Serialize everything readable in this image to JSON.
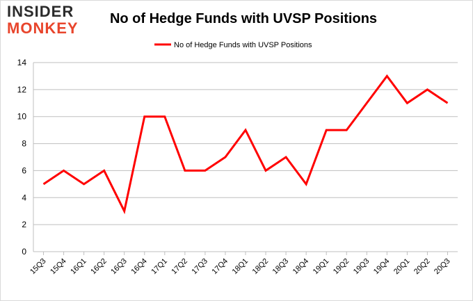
{
  "logo": {
    "top_text": "INSIDER",
    "bottom_text": "MONKEY"
  },
  "colors": {
    "line": "#ff0000",
    "grid": "#bfbfbf",
    "logo_dark": "#2b2b2b",
    "logo_accent": "#e8452c"
  },
  "chart_data": {
    "type": "line",
    "title": "No of Hedge Funds with UVSP Positions",
    "xlabel": "",
    "ylabel": "",
    "ylim": [
      0,
      14
    ],
    "yticks": [
      0,
      2,
      4,
      6,
      8,
      10,
      12,
      14
    ],
    "grid": true,
    "legend_position": "top-center",
    "categories": [
      "15Q3",
      "15Q4",
      "16Q1",
      "16Q2",
      "16Q3",
      "16Q4",
      "17Q1",
      "17Q2",
      "17Q3",
      "17Q4",
      "18Q1",
      "18Q2",
      "18Q3",
      "18Q4",
      "19Q1",
      "19Q2",
      "19Q3",
      "19Q4",
      "20Q1",
      "20Q2",
      "20Q3"
    ],
    "series": [
      {
        "name": "No of Hedge Funds with UVSP Positions",
        "values": [
          5,
          6,
          5,
          6,
          3,
          10,
          10,
          6,
          6,
          7,
          9,
          6,
          7,
          5,
          9,
          9,
          11,
          13,
          11,
          12,
          11
        ]
      }
    ]
  }
}
